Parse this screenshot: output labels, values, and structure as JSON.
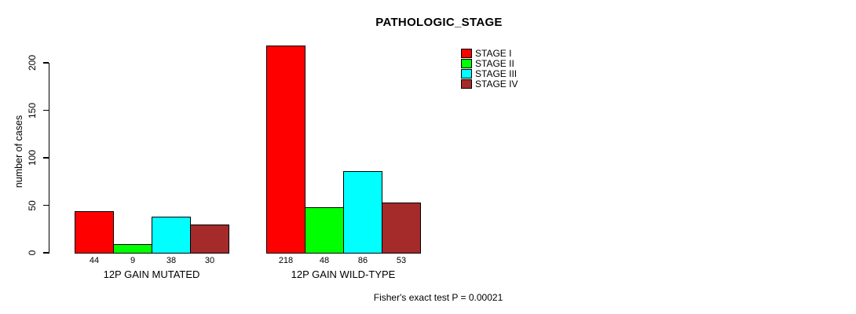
{
  "chart_data": {
    "type": "bar",
    "title": "PATHOLOGIC_STAGE",
    "ylabel": "number of cases",
    "xlabel": "",
    "ylim": [
      0,
      200
    ],
    "yticks": [
      0,
      50,
      100,
      150,
      200
    ],
    "grid": false,
    "legend_position": "top-right",
    "categories": [
      "12P GAIN MUTATED",
      "12P GAIN WILD-TYPE"
    ],
    "series": [
      {
        "name": "STAGE I",
        "color": "#ff0000",
        "values": [
          44,
          218
        ]
      },
      {
        "name": "STAGE II",
        "color": "#00ff00",
        "values": [
          9,
          48
        ]
      },
      {
        "name": "STAGE III",
        "color": "#00ffff",
        "values": [
          38,
          86
        ]
      },
      {
        "name": "STAGE IV",
        "color": "#a52a2a",
        "values": [
          30,
          53
        ]
      }
    ],
    "bar_labels": [
      [
        44,
        9,
        38,
        30
      ],
      [
        218,
        48,
        86,
        53
      ]
    ],
    "annotation": "Fisher's exact test P = 0.00021"
  }
}
